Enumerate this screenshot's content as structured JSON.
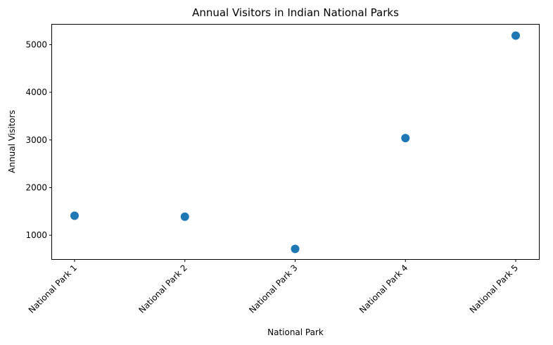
{
  "chart_data": {
    "type": "scatter",
    "title": "Annual Visitors in Indian National Parks",
    "xlabel": "National Park",
    "ylabel": "Annual Visitors",
    "categories": [
      "National Park 1",
      "National Park 2",
      "National Park 3",
      "National Park 4",
      "National Park 5"
    ],
    "values": [
      1410,
      1390,
      715,
      3040,
      5190
    ],
    "yticks": [
      1000,
      2000,
      3000,
      4000,
      5000
    ],
    "ylim": [
      500,
      5420
    ],
    "grid": false,
    "color": "#1f77b4"
  }
}
